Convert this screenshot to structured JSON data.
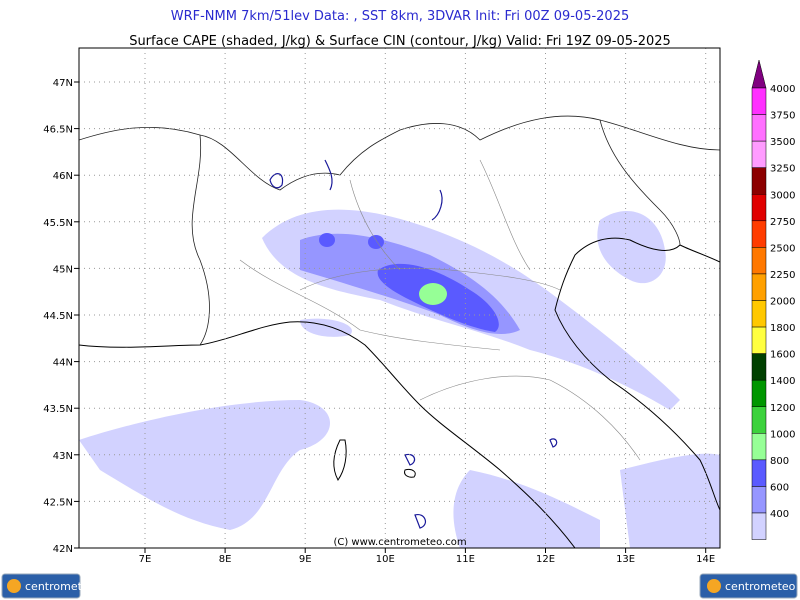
{
  "header": {
    "title": "WRF-NMM 7km/51lev  Data: , SST 8km, 3DVAR  Init: Fri 00Z 09-05-2025",
    "subtitle": "Surface CAPE (shaded, J/kg) & Surface CIN (contour, J/kg)  Valid: Fri 19Z 09-05-2025"
  },
  "map": {
    "lat_labels": [
      "47N",
      "46.5N",
      "46N",
      "45.5N",
      "45N",
      "44.5N",
      "44N",
      "43.5N",
      "43N",
      "42.5N",
      "42N"
    ],
    "lon_labels": [
      "7E",
      "8E",
      "9E",
      "10E",
      "11E",
      "12E",
      "13E",
      "14E"
    ],
    "copyright": "(C) www.centrometeo.com"
  },
  "colorbar": {
    "labels": [
      "4000",
      "3750",
      "3500",
      "3250",
      "3000",
      "2750",
      "2500",
      "2250",
      "2000",
      "1800",
      "1600",
      "1400",
      "1200",
      "1000",
      "800",
      "600",
      "400"
    ],
    "colors": [
      "#ff30ff",
      "#ff70ff",
      "#ff9cff",
      "#8c0000",
      "#e00000",
      "#ff3c00",
      "#ff7800",
      "#ffa000",
      "#ffc800",
      "#ffff40",
      "#004000",
      "#009600",
      "#3cd23c",
      "#96ff96",
      "#5a5aff",
      "#9696ff",
      "#d2d2ff"
    ],
    "top_color": "#800080"
  },
  "logos": [
    "centrometeo",
    "centrometeo"
  ]
}
